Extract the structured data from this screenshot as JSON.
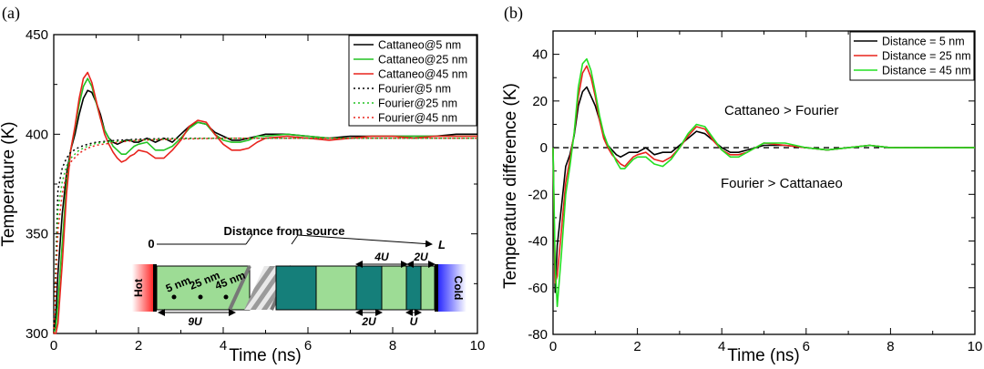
{
  "figure": {
    "panel_a": {
      "label": "(a)",
      "legend": [
        "Cattaneo@5 nm",
        "Cattaneo@25 nm",
        "Cattaneo@45 nm",
        "Fourier@5 nm",
        "Fourier@25 nm",
        "Fourier@45 nm"
      ],
      "inset": {
        "title": "Distance from source",
        "start": "0",
        "end": "L",
        "hot": "Hot",
        "cold": "Cold",
        "pos_5": "5 nm",
        "pos_25": "25 nm",
        "pos_45": "45 nm",
        "len_9u": "9U",
        "len_4u": "4U",
        "len_2u_top": "2U",
        "len_2u_bottom": "2U",
        "len_u": "U"
      }
    },
    "panel_b": {
      "label": "(b)",
      "legend": [
        "Distance = 5 nm",
        "Distance = 25 nm",
        "Distance = 45 nm"
      ],
      "ann_top": "Cattaneo > Fourier",
      "ann_bottom": "Fourier > Cattanaeo"
    }
  },
  "chart_data": [
    {
      "type": "line",
      "title": "",
      "xlabel": "Time (ns)",
      "ylabel": "Temperature (K)",
      "xlim": [
        0,
        10
      ],
      "ylim": [
        300,
        450
      ],
      "xticks": [
        0,
        2,
        4,
        6,
        8,
        10
      ],
      "yticks": [
        300,
        350,
        400,
        450
      ],
      "series": [
        {
          "name": "Cattaneo@5 nm",
          "color": "#000000",
          "style": "solid",
          "x": [
            0,
            0.05,
            0.1,
            0.2,
            0.3,
            0.4,
            0.5,
            0.6,
            0.7,
            0.8,
            0.9,
            1.0,
            1.1,
            1.2,
            1.3,
            1.4,
            1.5,
            1.6,
            1.7,
            1.8,
            1.9,
            2.0,
            2.2,
            2.4,
            2.6,
            2.8,
            3.0,
            3.2,
            3.4,
            3.6,
            3.8,
            4.0,
            4.2,
            4.4,
            4.6,
            4.8,
            5.0,
            5.5,
            6,
            6.5,
            7,
            7.5,
            8,
            8.5,
            9,
            9.5,
            10
          ],
          "y": [
            300,
            310,
            330,
            360,
            380,
            392,
            400,
            410,
            418,
            422,
            421,
            416,
            410,
            402,
            398,
            396,
            395,
            396,
            397,
            397,
            396,
            396,
            398,
            396,
            398,
            396,
            400,
            404,
            406,
            405,
            401,
            399,
            397,
            397,
            398,
            399,
            400,
            400,
            399,
            398,
            399,
            399,
            399,
            399,
            399,
            400,
            400
          ]
        },
        {
          "name": "Cattaneo@25 nm",
          "color": "#22c222",
          "style": "solid",
          "x": [
            0,
            0.05,
            0.1,
            0.2,
            0.3,
            0.4,
            0.5,
            0.6,
            0.7,
            0.8,
            0.9,
            1.0,
            1.1,
            1.2,
            1.3,
            1.4,
            1.5,
            1.6,
            1.7,
            1.8,
            1.9,
            2.0,
            2.2,
            2.4,
            2.6,
            2.8,
            3.0,
            3.2,
            3.4,
            3.6,
            3.8,
            4.0,
            4.2,
            4.4,
            4.6,
            4.8,
            5.0,
            5.5,
            6,
            6.5,
            7,
            7.5,
            8,
            8.5,
            9,
            9.5,
            10
          ],
          "y": [
            300,
            303,
            315,
            345,
            375,
            392,
            403,
            415,
            424,
            428,
            424,
            416,
            408,
            402,
            398,
            394,
            392,
            390,
            390,
            392,
            394,
            395,
            396,
            392,
            392,
            394,
            398,
            403,
            406,
            405,
            400,
            397,
            396,
            396,
            397,
            399,
            399,
            400,
            399,
            398,
            398,
            399,
            399,
            399,
            399,
            399,
            399
          ]
        },
        {
          "name": "Cattaneo@45 nm",
          "color": "#e8231c",
          "style": "solid",
          "x": [
            0,
            0.05,
            0.1,
            0.2,
            0.3,
            0.4,
            0.5,
            0.6,
            0.7,
            0.8,
            0.9,
            1.0,
            1.1,
            1.2,
            1.3,
            1.4,
            1.5,
            1.6,
            1.7,
            1.8,
            1.9,
            2.0,
            2.2,
            2.4,
            2.6,
            2.8,
            3.0,
            3.2,
            3.4,
            3.6,
            3.8,
            4.0,
            4.2,
            4.4,
            4.6,
            4.8,
            5.0,
            5.5,
            6,
            6.5,
            7,
            7.5,
            8,
            8.5,
            9,
            9.5,
            10
          ],
          "y": [
            300,
            300,
            305,
            335,
            370,
            392,
            404,
            418,
            428,
            431,
            426,
            417,
            408,
            400,
            395,
            391,
            388,
            386,
            387,
            389,
            390,
            392,
            391,
            388,
            388,
            392,
            397,
            404,
            407,
            406,
            400,
            395,
            392,
            392,
            393,
            396,
            398,
            399,
            398,
            397,
            398,
            399,
            399,
            398,
            399,
            399,
            399
          ]
        },
        {
          "name": "Fourier@5 nm",
          "color": "#000000",
          "style": "dotted",
          "x": [
            0,
            0.1,
            0.2,
            0.3,
            0.4,
            0.6,
            0.8,
            1.0,
            1.5,
            2,
            3,
            4,
            5,
            6,
            7,
            8,
            9,
            10
          ],
          "y": [
            300,
            372,
            383,
            388,
            391,
            393.5,
            395,
            396,
            397,
            397.5,
            398,
            398,
            398,
            398,
            398,
            398,
            398,
            398
          ]
        },
        {
          "name": "Fourier@25 nm",
          "color": "#22c222",
          "style": "dotted",
          "x": [
            0,
            0.1,
            0.2,
            0.3,
            0.4,
            0.6,
            0.8,
            1.0,
            1.5,
            2,
            3,
            4,
            5,
            6,
            7,
            8,
            9,
            10
          ],
          "y": [
            300,
            362,
            376,
            384,
            388,
            392,
            394,
            395.5,
            396.5,
            397,
            397.8,
            398,
            398,
            398,
            398,
            398,
            398,
            398
          ]
        },
        {
          "name": "Fourier@45 nm",
          "color": "#e8231c",
          "style": "dotted",
          "x": [
            0,
            0.1,
            0.2,
            0.3,
            0.4,
            0.6,
            0.8,
            1.0,
            1.5,
            2,
            3,
            4,
            5,
            6,
            7,
            8,
            9,
            10
          ],
          "y": [
            300,
            352,
            370,
            380,
            386,
            390.5,
            393,
            394.5,
            396,
            397,
            397.6,
            398,
            398,
            398,
            398,
            398,
            398,
            398
          ]
        }
      ]
    },
    {
      "type": "line",
      "title": "",
      "xlabel": "Time (ns)",
      "ylabel": "Temperature difference (K)",
      "xlim": [
        0,
        10
      ],
      "ylim": [
        -80,
        50
      ],
      "xticks": [
        0,
        2,
        4,
        6,
        8,
        10
      ],
      "yticks": [
        -80,
        -60,
        -40,
        -20,
        0,
        20,
        40
      ],
      "reference_line": {
        "y": 0,
        "style": "dashed"
      },
      "series": [
        {
          "name": "Distance = 5 nm",
          "color": "#000000",
          "x": [
            0,
            0.05,
            0.1,
            0.2,
            0.3,
            0.4,
            0.5,
            0.6,
            0.7,
            0.8,
            0.9,
            1.0,
            1.1,
            1.2,
            1.3,
            1.4,
            1.5,
            1.6,
            1.7,
            1.8,
            1.9,
            2.0,
            2.2,
            2.4,
            2.6,
            2.8,
            3.0,
            3.2,
            3.4,
            3.6,
            3.8,
            4.0,
            4.2,
            4.4,
            4.6,
            4.8,
            5.0,
            5.5,
            6,
            6.5,
            7,
            7.5,
            8,
            8.5,
            9,
            9.5,
            10
          ],
          "y": [
            0,
            -62,
            -42,
            -25,
            -8,
            -3,
            5,
            18,
            24,
            26,
            22,
            18,
            12,
            5,
            1,
            -1,
            -3,
            -4,
            -3,
            -2,
            -2,
            -2,
            0,
            -3,
            -2,
            -2,
            1,
            4,
            7,
            6,
            3,
            0,
            -2,
            -2,
            -1,
            0,
            1,
            1,
            0,
            -1,
            0,
            1,
            0,
            0,
            0,
            0,
            0
          ]
        },
        {
          "name": "Distance = 25 nm",
          "color": "#e8231c",
          "x": [
            0,
            0.05,
            0.1,
            0.2,
            0.3,
            0.4,
            0.5,
            0.6,
            0.7,
            0.8,
            0.9,
            1.0,
            1.1,
            1.2,
            1.3,
            1.4,
            1.5,
            1.6,
            1.7,
            1.8,
            1.9,
            2.0,
            2.2,
            2.4,
            2.6,
            2.8,
            3.0,
            3.2,
            3.4,
            3.6,
            3.8,
            4.0,
            4.2,
            4.4,
            4.6,
            4.8,
            5.0,
            5.5,
            6,
            6.5,
            7,
            7.5,
            8,
            8.5,
            9,
            9.5,
            10
          ],
          "y": [
            0,
            -58,
            -55,
            -35,
            -15,
            -5,
            6,
            22,
            32,
            35,
            30,
            22,
            12,
            4,
            0,
            -3,
            -5,
            -7,
            -8,
            -6,
            -4,
            -3,
            -2,
            -5,
            -6,
            -4,
            0,
            5,
            9,
            8,
            3,
            -1,
            -3,
            -3,
            -2,
            0,
            2,
            1,
            0,
            -1,
            0,
            1,
            0,
            0,
            0,
            0,
            0
          ]
        },
        {
          "name": "Distance = 45 nm",
          "color": "#22e022",
          "x": [
            0,
            0.05,
            0.1,
            0.2,
            0.3,
            0.4,
            0.5,
            0.6,
            0.7,
            0.8,
            0.9,
            1.0,
            1.1,
            1.2,
            1.3,
            1.4,
            1.5,
            1.6,
            1.7,
            1.8,
            1.9,
            2.0,
            2.2,
            2.4,
            2.6,
            2.8,
            3.0,
            3.2,
            3.4,
            3.6,
            3.8,
            4.0,
            4.2,
            4.4,
            4.6,
            4.8,
            5.0,
            5.5,
            6,
            6.5,
            7,
            7.5,
            8,
            8.5,
            9,
            9.5,
            10
          ],
          "y": [
            0,
            -50,
            -68,
            -45,
            -20,
            -8,
            6,
            26,
            36,
            38,
            33,
            24,
            14,
            6,
            1,
            -2,
            -6,
            -9,
            -9,
            -7,
            -5,
            -4,
            -4,
            -7,
            -8,
            -5,
            0,
            6,
            10,
            9,
            4,
            -1,
            -4,
            -4,
            -2,
            0,
            2,
            2,
            0,
            -1,
            0,
            1,
            0,
            0,
            0,
            0,
            0
          ]
        }
      ]
    }
  ]
}
